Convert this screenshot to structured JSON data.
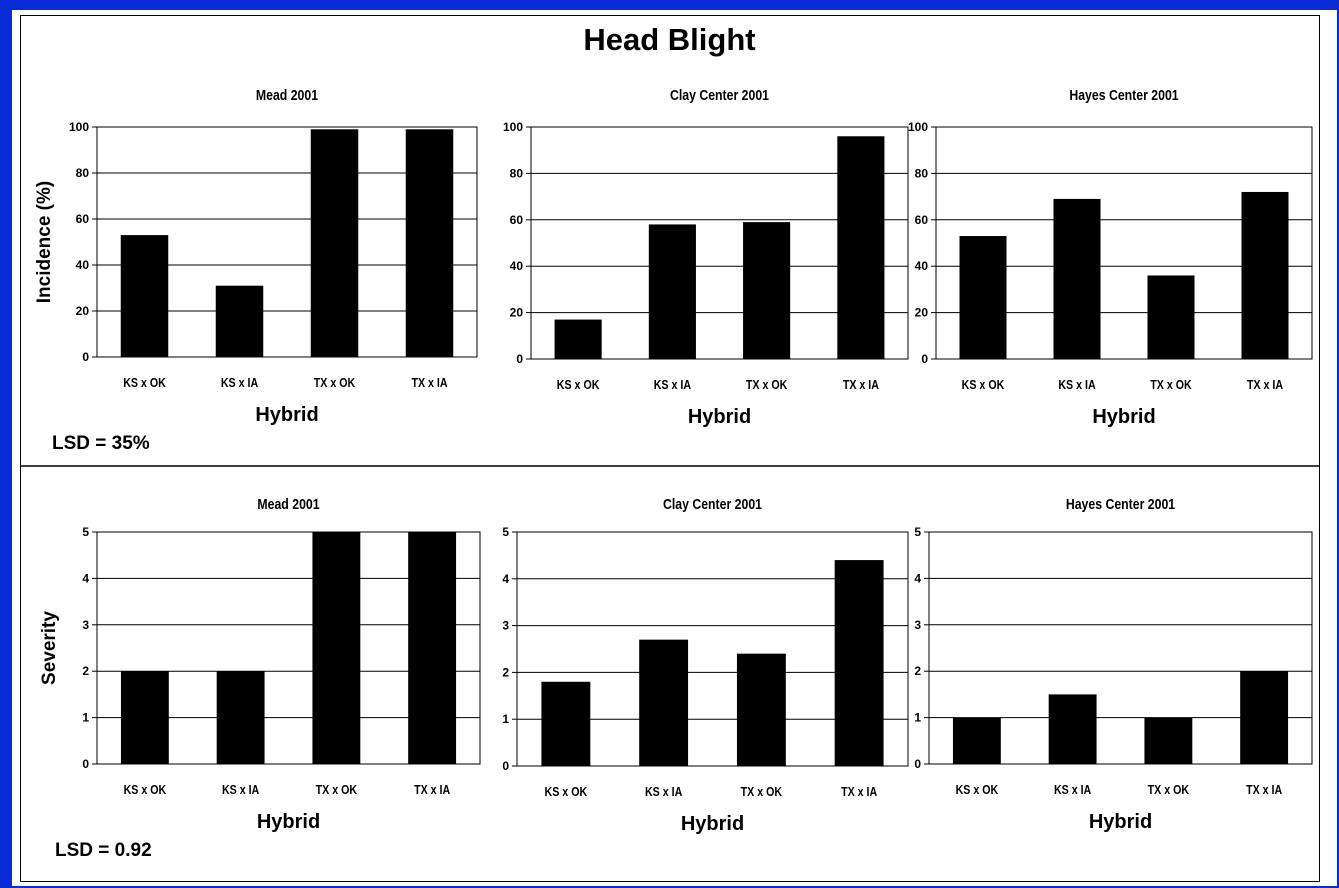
{
  "page": {
    "title": "Head Blight",
    "incidence_lsd": "LSD = 35%",
    "severity_lsd": "LSD = 0.92"
  },
  "chart_data": [
    {
      "type": "bar",
      "title": "Mead 2001",
      "xlabel": "Hybrid",
      "ylabel": "Incidence (%)",
      "categories": [
        "KS x OK",
        "KS x IA",
        "TX x OK",
        "TX x IA"
      ],
      "values": [
        53,
        31,
        99,
        99
      ],
      "ylim": [
        0,
        100
      ],
      "yticks": [
        0,
        20,
        40,
        60,
        80,
        100
      ],
      "grid": true
    },
    {
      "type": "bar",
      "title": "Clay Center 2001",
      "xlabel": "Hybrid",
      "ylabel": "",
      "categories": [
        "KS x OK",
        "KS x IA",
        "TX x OK",
        "TX x IA"
      ],
      "values": [
        17,
        58,
        59,
        96
      ],
      "ylim": [
        0,
        100
      ],
      "yticks": [
        0,
        20,
        40,
        60,
        80,
        100
      ],
      "grid": true
    },
    {
      "type": "bar",
      "title": "Hayes Center 2001",
      "xlabel": "Hybrid",
      "ylabel": "",
      "categories": [
        "KS x OK",
        "KS x IA",
        "TX x OK",
        "TX x IA"
      ],
      "values": [
        53,
        69,
        36,
        72
      ],
      "ylim": [
        0,
        100
      ],
      "yticks": [
        0,
        20,
        40,
        60,
        80,
        100
      ],
      "grid": true
    },
    {
      "type": "bar",
      "title": "Mead 2001",
      "xlabel": "Hybrid",
      "ylabel": "Severity",
      "categories": [
        "KS x OK",
        "KS x IA",
        "TX x OK",
        "TX x IA"
      ],
      "values": [
        2,
        2,
        5,
        5
      ],
      "ylim": [
        0,
        5
      ],
      "yticks": [
        0,
        1,
        2,
        3,
        4,
        5
      ],
      "grid": true
    },
    {
      "type": "bar",
      "title": "Clay Center 2001",
      "xlabel": "Hybrid",
      "ylabel": "",
      "categories": [
        "KS x OK",
        "KS x IA",
        "TX x OK",
        "TX x IA"
      ],
      "values": [
        1.8,
        2.7,
        2.4,
        4.4
      ],
      "ylim": [
        0,
        5
      ],
      "yticks": [
        0,
        1,
        2,
        3,
        4,
        5
      ],
      "grid": true
    },
    {
      "type": "bar",
      "title": "Hayes Center 2001",
      "xlabel": "Hybrid",
      "ylabel": "",
      "categories": [
        "KS x OK",
        "KS x IA",
        "TX x OK",
        "TX x IA"
      ],
      "values": [
        1,
        1.5,
        1,
        2
      ],
      "ylim": [
        0,
        5
      ],
      "yticks": [
        0,
        1,
        2,
        3,
        4,
        5
      ],
      "grid": true
    }
  ]
}
